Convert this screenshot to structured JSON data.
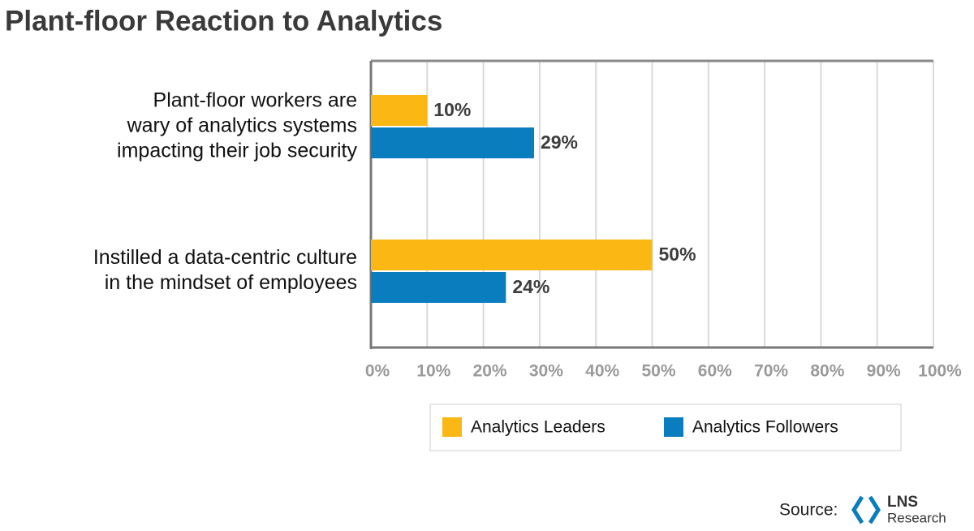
{
  "chart_data": {
    "type": "bar",
    "orientation": "horizontal",
    "title": "Plant-floor Reaction to Analytics",
    "categories": [
      [
        "Plant-floor workers are",
        "wary of analytics systems",
        "impacting their job security"
      ],
      [
        "Instilled a data-centric culture",
        "in the mindset of employees"
      ]
    ],
    "series": [
      {
        "name": "Analytics Leaders",
        "color": "#fbb713",
        "values": [
          10,
          50
        ],
        "value_labels": [
          "10%",
          "50%"
        ]
      },
      {
        "name": "Analytics Followers",
        "color": "#0a7dbf",
        "values": [
          29,
          24
        ],
        "value_labels": [
          "29%",
          "24%"
        ]
      }
    ],
    "xlim": [
      0,
      100
    ],
    "xticks": [
      {
        "value": 0,
        "label": "0%"
      },
      {
        "value": 10,
        "label": "10%"
      },
      {
        "value": 20,
        "label": "20%"
      },
      {
        "value": 30,
        "label": "30%"
      },
      {
        "value": 40,
        "label": "40%"
      },
      {
        "value": 50,
        "label": "50%"
      },
      {
        "value": 60,
        "label": "60%"
      },
      {
        "value": 70,
        "label": "70%"
      },
      {
        "value": 80,
        "label": "80%"
      },
      {
        "value": 90,
        "label": "90%"
      },
      {
        "value": 100,
        "label": "100%"
      }
    ],
    "grid": true,
    "legend": "bottom",
    "source_label": "Source:",
    "source_logo": [
      "LNS",
      "Research"
    ]
  }
}
